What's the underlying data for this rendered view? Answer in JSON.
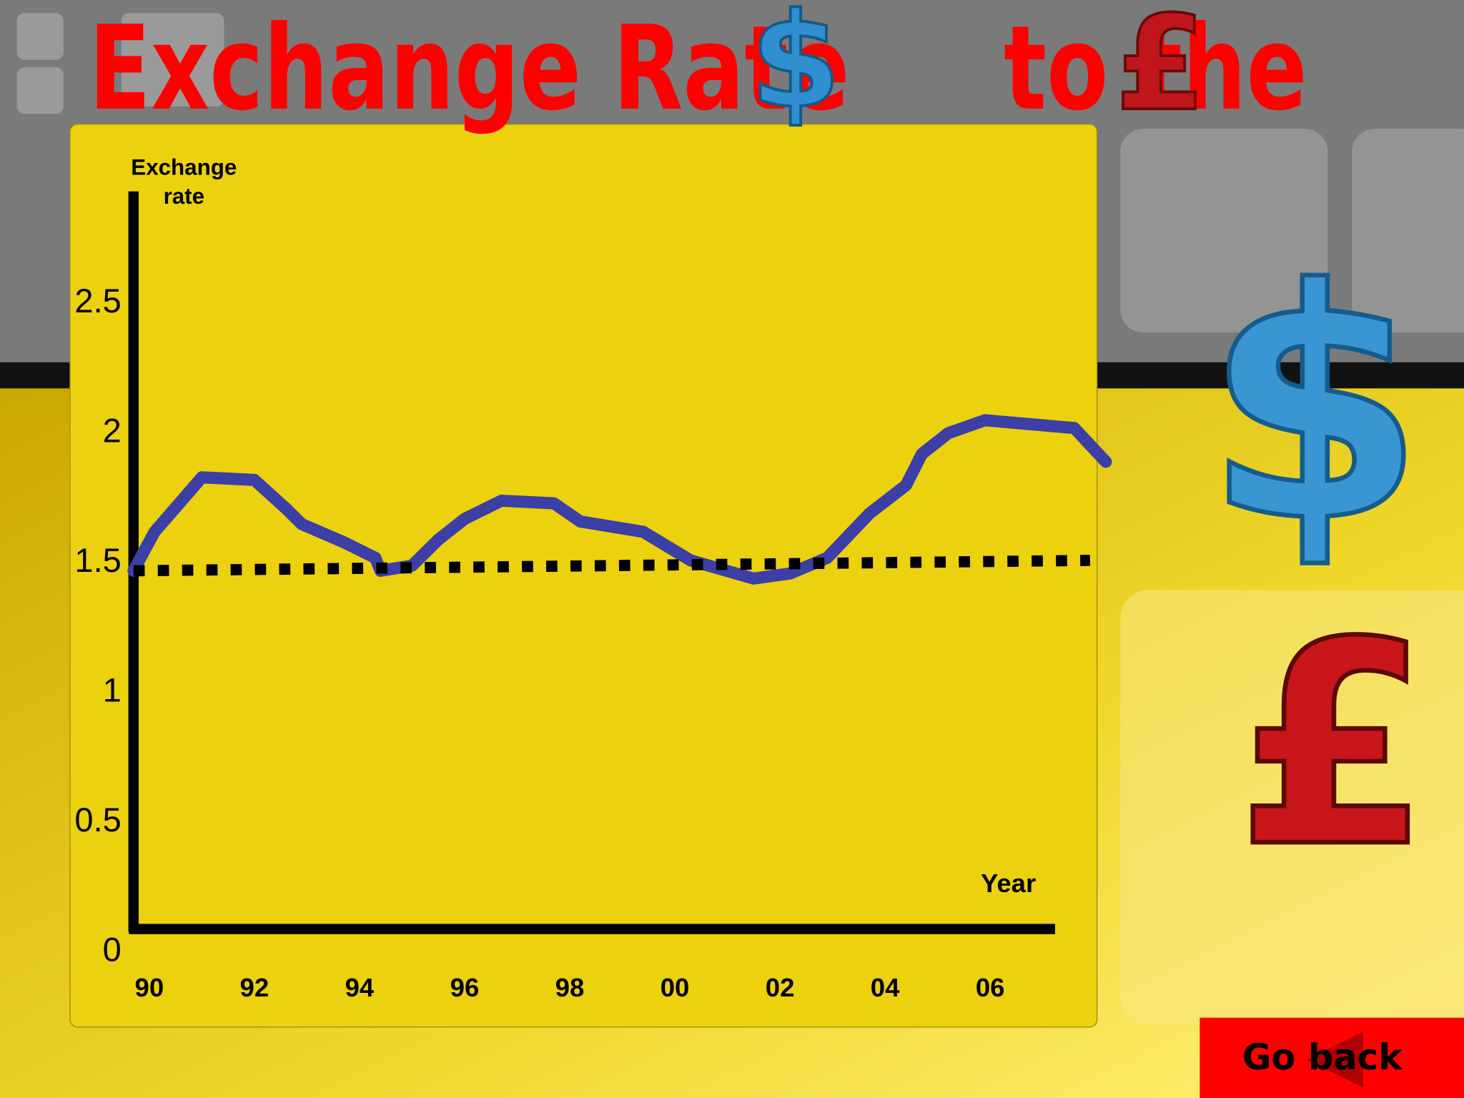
{
  "chart_data": {
    "type": "line",
    "title": "Exchange Rate",
    "title_end": "to the",
    "symbols": [
      "$",
      "£"
    ],
    "y_label": [
      "Exchange",
      "rate"
    ],
    "x_label": "Year",
    "xlim": [
      1989.7,
      2008.3
    ],
    "ylim": [
      0,
      2.8
    ],
    "xticks": [
      {
        "value": 1990,
        "label": "90"
      },
      {
        "value": 1992,
        "label": "92"
      },
      {
        "value": 1994,
        "label": "94"
      },
      {
        "value": 1996,
        "label": "96"
      },
      {
        "value": 1998,
        "label": "98"
      },
      {
        "value": 2000,
        "label": "00"
      },
      {
        "value": 2002,
        "label": "02"
      },
      {
        "value": 2004,
        "label": "04"
      },
      {
        "value": 2006,
        "label": "06"
      }
    ],
    "yticks": [
      0,
      0.5,
      1,
      1.5,
      2,
      2.5
    ],
    "series": [
      {
        "color": "#3b3fa6",
        "dashed": false,
        "x": [
          1989.7,
          1990.1,
          1991.0,
          1992.0,
          1992.6,
          1992.9,
          1993.7,
          1994.3,
          1994.4,
          1995.0,
          1995.5,
          1996.0,
          1996.7,
          1997.7,
          1998.2,
          1999.4,
          2000.3,
          2001.5,
          2002.2,
          2002.9,
          2003.7,
          2004.4,
          2004.7,
          2005.2,
          2005.9,
          2007.6,
          2008.2
        ],
        "values": [
          1.47,
          1.62,
          1.83,
          1.82,
          1.71,
          1.65,
          1.58,
          1.52,
          1.47,
          1.49,
          1.59,
          1.67,
          1.74,
          1.73,
          1.66,
          1.62,
          1.51,
          1.44,
          1.46,
          1.52,
          1.69,
          1.8,
          1.92,
          2.0,
          2.05,
          2.02,
          1.89
        ]
      },
      {
        "color": "#000000",
        "dashed": true,
        "x": [
          1989.7,
          2007.9
        ],
        "values": [
          1.47,
          1.51
        ]
      }
    ],
    "button": "Go back"
  }
}
